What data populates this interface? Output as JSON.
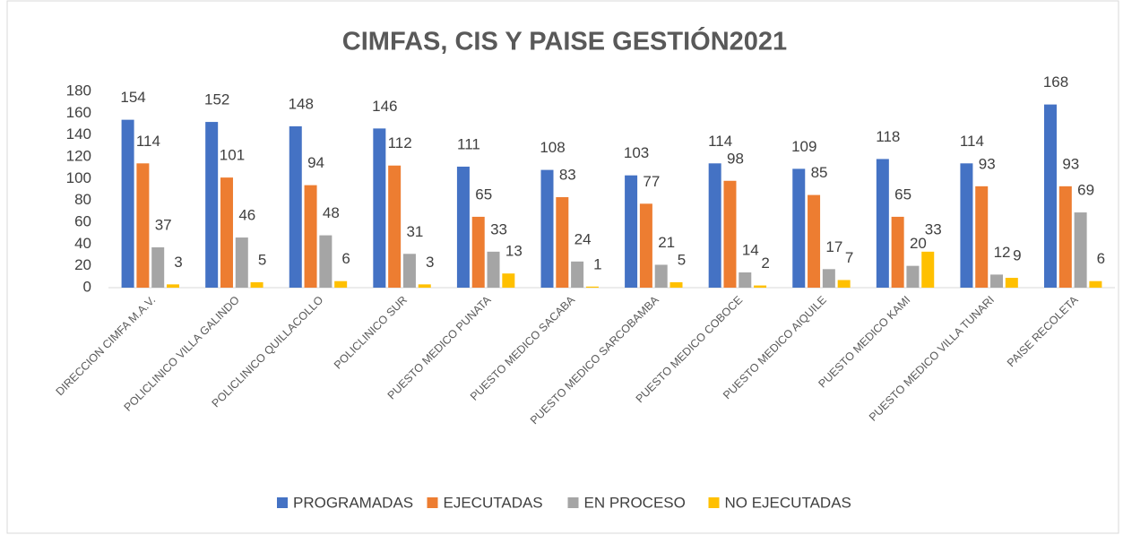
{
  "chart_data": {
    "type": "bar",
    "title": "CIMFAS, CIS Y PAISE GESTIÓN2021",
    "categories": [
      "DIRECCION CIMFA M.A.V.",
      "POLICLINICO  VILLA GALINDO",
      "POLICLINICO  QUILLACOLLO",
      "POLICLINICO SUR",
      "PUESTO MEDICO PUNATA",
      "PUESTO MEDICO SACABA",
      "PUESTO MEDICO SARCOBAMBA",
      "PUESTO MEDICO COBOCE",
      "PUESTO MEDICO AIQUILE",
      "PUESTO MEDICO KAMI",
      "PUESTO MEDICO VILLA TUNARI",
      "PAISE RECOLETA"
    ],
    "series": [
      {
        "name": "PROGRAMADAS",
        "color": "#4472c4",
        "values": [
          154,
          152,
          148,
          146,
          111,
          108,
          103,
          114,
          109,
          118,
          114,
          168
        ]
      },
      {
        "name": "EJECUTADAS",
        "color": "#ed7d31",
        "values": [
          114,
          101,
          94,
          112,
          65,
          83,
          77,
          98,
          85,
          65,
          93,
          93
        ]
      },
      {
        "name": "EN PROCESO",
        "color": "#a5a5a5",
        "values": [
          37,
          46,
          48,
          31,
          33,
          24,
          21,
          14,
          17,
          20,
          12,
          69
        ]
      },
      {
        "name": "NO EJECUTADAS",
        "color": "#ffc000",
        "values": [
          3,
          5,
          6,
          3,
          13,
          1,
          5,
          2,
          7,
          33,
          9,
          6
        ]
      }
    ],
    "ylim": [
      0,
      180
    ],
    "yticks": [
      0,
      20,
      40,
      60,
      80,
      100,
      120,
      140,
      160,
      180
    ],
    "grid": false,
    "legend": "bottom"
  }
}
